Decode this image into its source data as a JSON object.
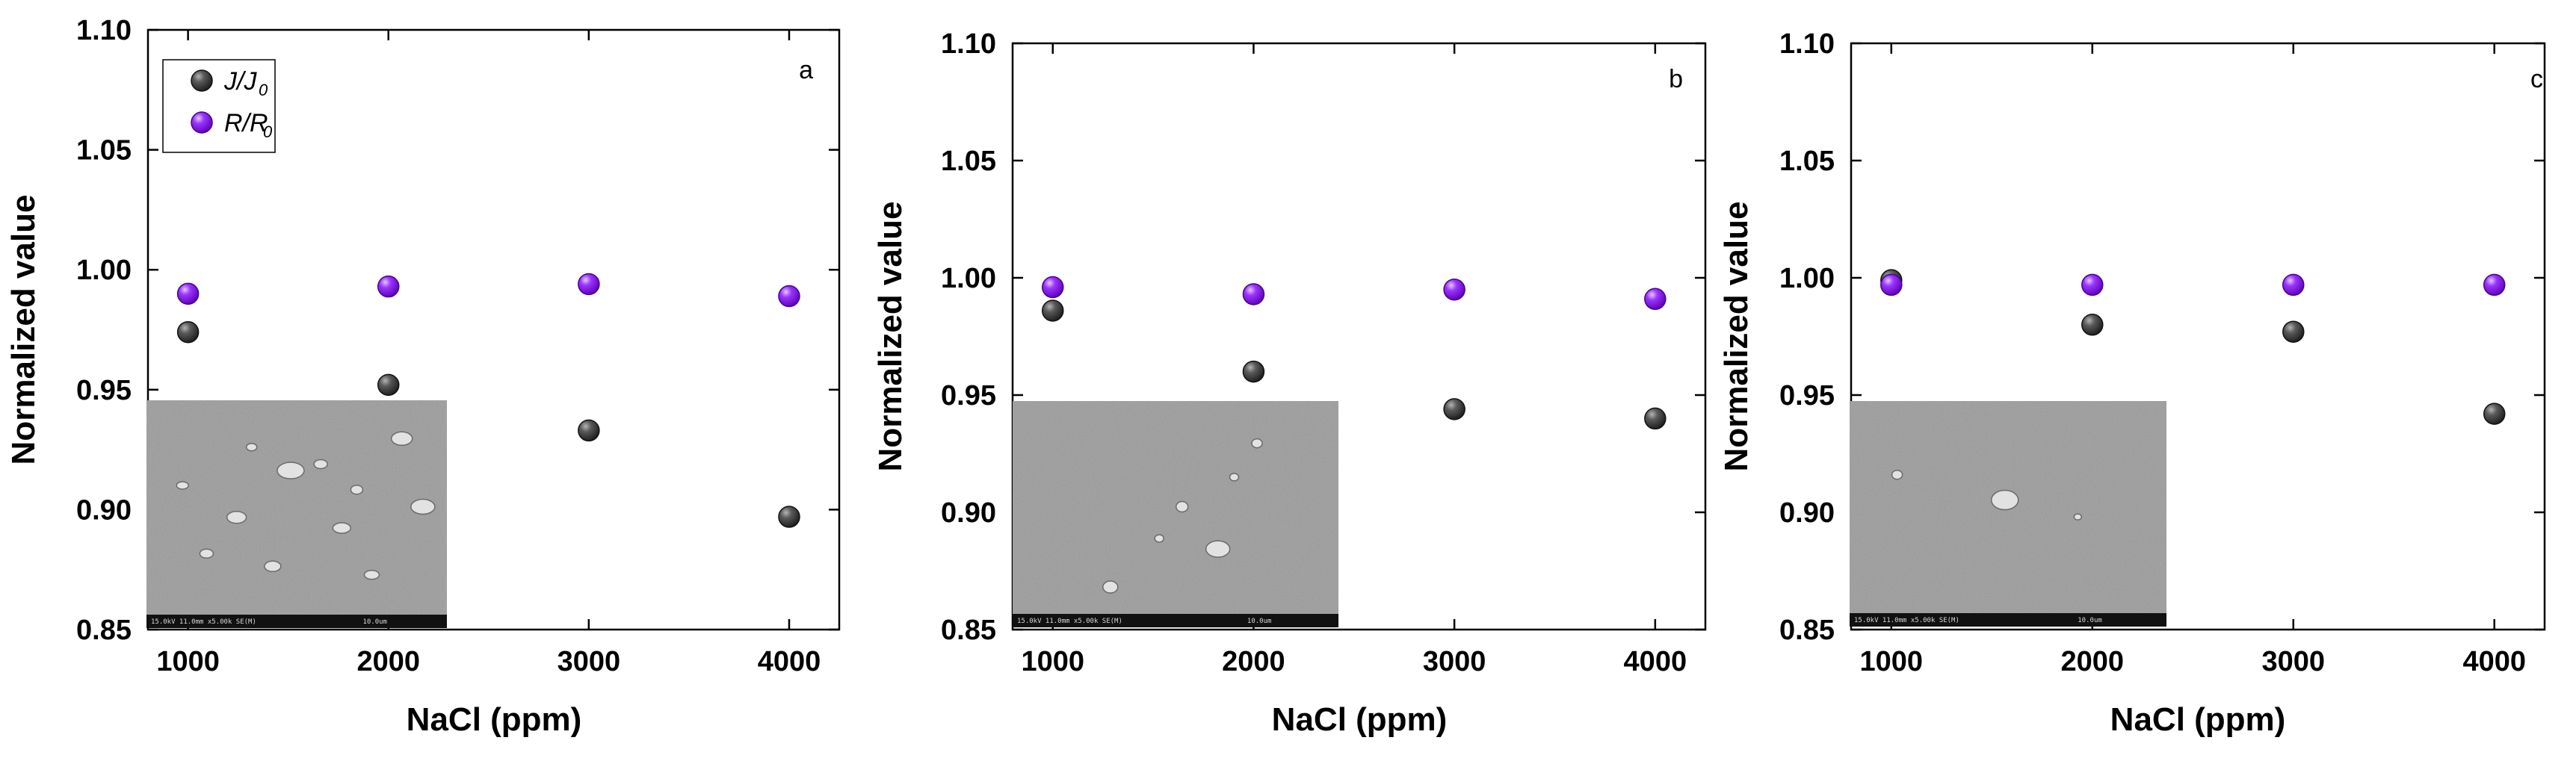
{
  "colors": {
    "jj0": "#3c3c3c",
    "rr0": "#8a1ef0",
    "sem_bg": "#9a9a9a",
    "sem_bar": "#111111"
  },
  "chart_data": [
    {
      "type": "scatter",
      "panel": "a",
      "xlabel": "NaCl (ppm)",
      "ylabel": "Normalized value",
      "xticks": [
        1000,
        2000,
        3000,
        4000
      ],
      "xtick_labels": [
        "1000",
        "2000",
        "3000",
        "4000"
      ],
      "yticks": [
        0.85,
        0.9,
        0.95,
        1.0,
        1.05,
        1.1
      ],
      "ytick_labels": [
        "0.85",
        "0.90",
        "0.95",
        "1.00",
        "1.05",
        "1.10"
      ],
      "xlim": [
        800,
        4250
      ],
      "ylim": [
        0.85,
        1.1
      ],
      "legend": {
        "position": "top-left",
        "entries": [
          {
            "series": 0,
            "main": "J/J",
            "sub": "0"
          },
          {
            "series": 1,
            "main": "R/R",
            "sub": "0"
          }
        ]
      },
      "series": [
        {
          "name": "J/J0",
          "x": [
            1000,
            2000,
            3000,
            4000
          ],
          "y": [
            0.974,
            0.952,
            0.933,
            0.897
          ]
        },
        {
          "name": "R/R0",
          "x": [
            1000,
            2000,
            3000,
            4000
          ],
          "y": [
            0.99,
            0.993,
            0.994,
            0.989
          ]
        }
      ],
      "inset": {
        "caption": "15.0kV 11.0mm x5.00k SE(M)",
        "scale": "10.0um"
      }
    },
    {
      "type": "scatter",
      "panel": "b",
      "xlabel": "NaCl (ppm)",
      "ylabel": "Normalized value",
      "xticks": [
        1000,
        2000,
        3000,
        4000
      ],
      "xtick_labels": [
        "1000",
        "2000",
        "3000",
        "4000"
      ],
      "yticks": [
        0.85,
        0.9,
        0.95,
        1.0,
        1.05,
        1.1
      ],
      "ytick_labels": [
        "0.85",
        "0.90",
        "0.95",
        "1.00",
        "1.05",
        "1.10"
      ],
      "xlim": [
        800,
        4250
      ],
      "ylim": [
        0.85,
        1.1
      ],
      "series": [
        {
          "name": "J/J0",
          "x": [
            1000,
            2000,
            3000,
            4000
          ],
          "y": [
            0.986,
            0.96,
            0.944,
            0.94
          ]
        },
        {
          "name": "R/R0",
          "x": [
            1000,
            2000,
            3000,
            4000
          ],
          "y": [
            0.996,
            0.993,
            0.995,
            0.991
          ]
        }
      ],
      "inset": {
        "caption": "15.0kV 11.0mm x5.00k SE(M)",
        "scale": "10.0um"
      }
    },
    {
      "type": "scatter",
      "panel": "c",
      "xlabel": "NaCl (ppm)",
      "ylabel": "Normalized value",
      "xticks": [
        1000,
        2000,
        3000,
        4000
      ],
      "xtick_labels": [
        "1000",
        "2000",
        "3000",
        "4000"
      ],
      "yticks": [
        0.85,
        0.9,
        0.95,
        1.0,
        1.05,
        1.1
      ],
      "ytick_labels": [
        "0.85",
        "0.90",
        "0.95",
        "1.00",
        "1.05",
        "1.10"
      ],
      "xlim": [
        800,
        4250
      ],
      "ylim": [
        0.85,
        1.1
      ],
      "series": [
        {
          "name": "J/J0",
          "x": [
            1000,
            2000,
            3000,
            4000
          ],
          "y": [
            0.999,
            0.98,
            0.977,
            0.942
          ]
        },
        {
          "name": "R/R0",
          "x": [
            1000,
            2000,
            3000,
            4000
          ],
          "y": [
            0.997,
            0.997,
            0.997,
            0.997
          ]
        }
      ],
      "inset": {
        "caption": "15.0kV 11.0mm x5.00k SE(M)",
        "scale": "10.0um"
      }
    }
  ]
}
